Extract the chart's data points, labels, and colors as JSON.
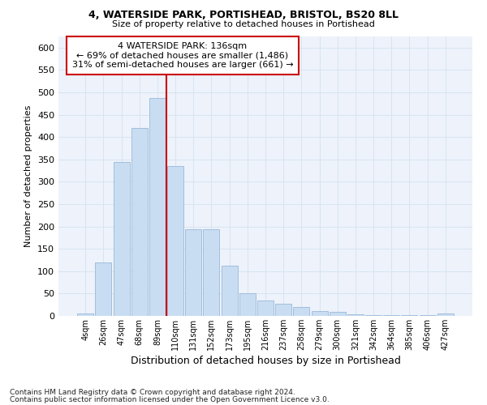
{
  "title1": "4, WATERSIDE PARK, PORTISHEAD, BRISTOL, BS20 8LL",
  "title2": "Size of property relative to detached houses in Portishead",
  "xlabel": "Distribution of detached houses by size in Portishead",
  "ylabel": "Number of detached properties",
  "categories": [
    "4sqm",
    "26sqm",
    "47sqm",
    "68sqm",
    "89sqm",
    "110sqm",
    "131sqm",
    "152sqm",
    "173sqm",
    "195sqm",
    "216sqm",
    "237sqm",
    "258sqm",
    "279sqm",
    "300sqm",
    "321sqm",
    "342sqm",
    "364sqm",
    "385sqm",
    "406sqm",
    "427sqm"
  ],
  "values": [
    5,
    120,
    345,
    420,
    487,
    335,
    193,
    193,
    112,
    50,
    35,
    27,
    20,
    10,
    9,
    3,
    2,
    2,
    2,
    2,
    5
  ],
  "bar_color": "#c9ddf2",
  "bar_edge_color": "#9ab8d8",
  "red_line_index": 5,
  "highlight_color": "#cc0000",
  "annotation_text": "4 WATERSIDE PARK: 136sqm\n← 69% of detached houses are smaller (1,486)\n31% of semi-detached houses are larger (661) →",
  "annotation_box_color": "#cc0000",
  "grid_color": "#d8e4f0",
  "bg_color": "#edf2fb",
  "footnote1": "Contains HM Land Registry data © Crown copyright and database right 2024.",
  "footnote2": "Contains public sector information licensed under the Open Government Licence v3.0.",
  "ylim": [
    0,
    625
  ],
  "yticks": [
    0,
    50,
    100,
    150,
    200,
    250,
    300,
    350,
    400,
    450,
    500,
    550,
    600
  ]
}
